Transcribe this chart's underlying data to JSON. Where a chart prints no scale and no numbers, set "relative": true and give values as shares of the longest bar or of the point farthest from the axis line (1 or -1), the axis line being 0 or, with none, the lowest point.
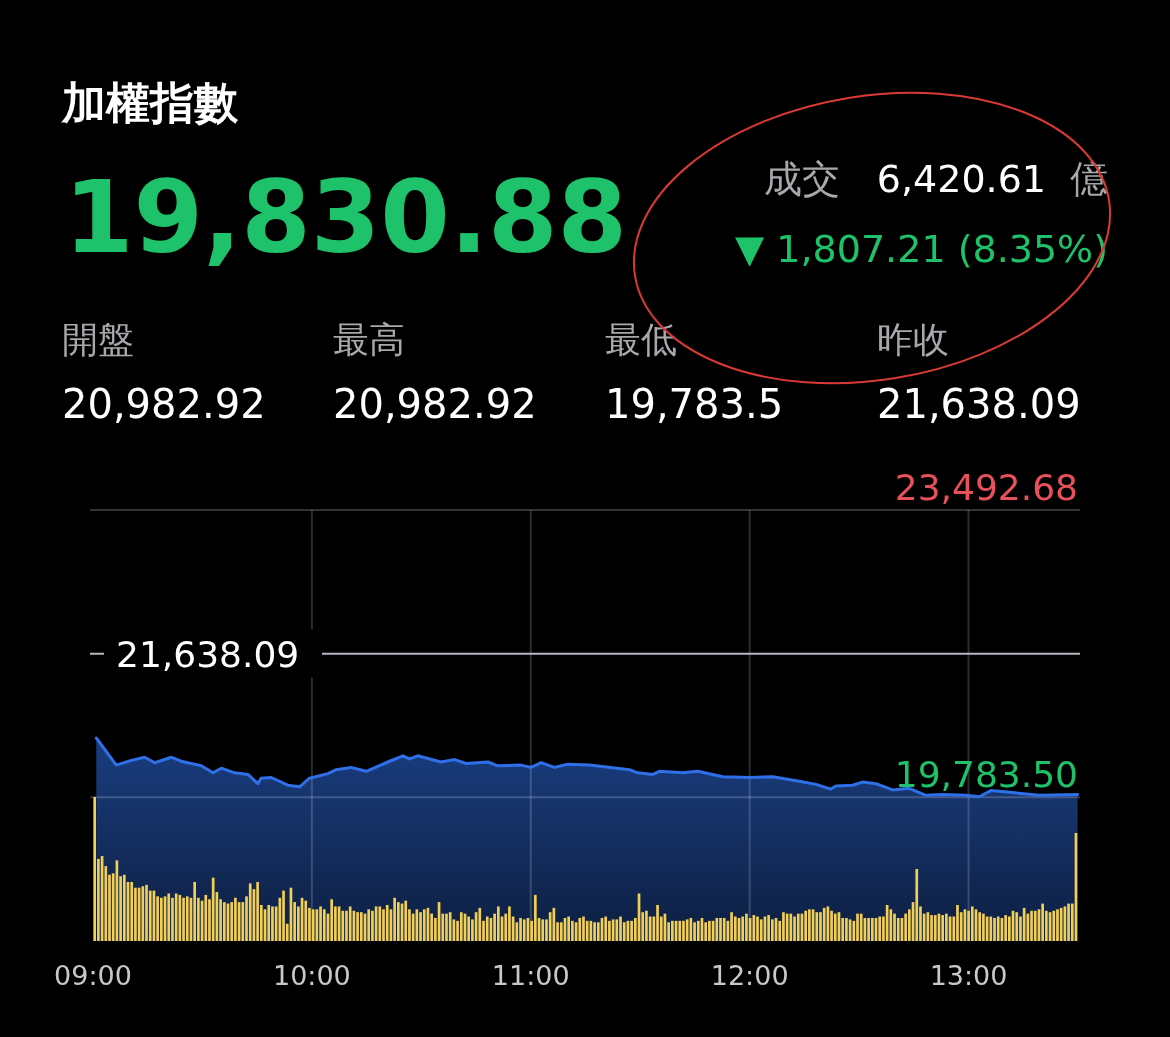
{
  "chart_data": [
    {
      "type": "other",
      "title": "加權指數",
      "annotations": [
        "19,830.88",
        "成交",
        "6,420.61",
        "億",
        "▼ 1,807.21 (8.35%)",
        "開盤",
        "20,982.92",
        "最高",
        "20,982.92",
        "最低",
        "19,783.5",
        "昨收",
        "21,638.09"
      ]
    },
    {
      "type": "area",
      "xlim": [
        9,
        13.5
      ],
      "ylim": [
        17928.91,
        23492.68
      ],
      "grid": true,
      "xticks": [
        {
          "value": 9,
          "label": "09:00"
        },
        {
          "value": 10,
          "label": "10:00"
        },
        {
          "value": 11,
          "label": "11:00"
        },
        {
          "value": 12,
          "label": "12:00"
        },
        {
          "value": 13,
          "label": "13:00"
        }
      ],
      "yticks": [
        {
          "value": 23492.68,
          "label": "23,492.68"
        },
        {
          "value": 19783.5,
          "label": "19,783.50"
        }
      ],
      "ref_lines": [
        {
          "axis": "y",
          "value": 21638.09,
          "label": "21,638.09",
          "color": "#b4b8c4"
        }
      ],
      "x": [
        9.015,
        9.106,
        9.175,
        9.236,
        9.282,
        9.358,
        9.403,
        9.495,
        9.548,
        9.586,
        9.647,
        9.708,
        9.753,
        9.768,
        9.814,
        9.89,
        9.944,
        9.989,
        10.073,
        10.111,
        10.179,
        10.248,
        10.347,
        10.416,
        10.446,
        10.484,
        10.59,
        10.652,
        10.705,
        10.804,
        10.849,
        10.956,
        11.001,
        11.047,
        11.108,
        11.169,
        11.268,
        11.451,
        11.489,
        11.557,
        11.588,
        11.694,
        11.763,
        11.877,
        11.999,
        12.105,
        12.227,
        12.303,
        12.371,
        12.394,
        12.47,
        12.516,
        12.577,
        12.653,
        12.729,
        12.805,
        12.881,
        12.988,
        13.049,
        13.102,
        13.186,
        13.323,
        13.498
      ],
      "series": [
        {
          "color": "#2f6fe8",
          "values": [
            20550,
            20200,
            20260,
            20300,
            20230,
            20300,
            20250,
            20190,
            20100,
            20160,
            20100,
            20080,
            19960,
            20030,
            20040,
            19940,
            19920,
            20030,
            20090,
            20140,
            20170,
            20120,
            20240,
            20320,
            20280,
            20320,
            20240,
            20270,
            20220,
            20240,
            20190,
            20200,
            20170,
            20230,
            20170,
            20210,
            20200,
            20140,
            20100,
            20080,
            20120,
            20100,
            20120,
            20050,
            20040,
            20050,
            19990,
            19950,
            19890,
            19930,
            19940,
            19980,
            19960,
            19880,
            19900,
            19810,
            19820,
            19810,
            19790,
            19870,
            19850,
            19810,
            19820
          ]
        }
      ]
    },
    {
      "type": "bar",
      "relative": true,
      "color": "#f2cf55",
      "categories": [
        null,
        null,
        null,
        null,
        null,
        null,
        null,
        null,
        null,
        null,
        null,
        null,
        null,
        null,
        null,
        null,
        null,
        null,
        null,
        null,
        null,
        null,
        null,
        null,
        null,
        null,
        null,
        null,
        null,
        null,
        null,
        null,
        null,
        null,
        null,
        null,
        null,
        null,
        null,
        null,
        null,
        null,
        null,
        null,
        null,
        null,
        null,
        null,
        null,
        null,
        null,
        null,
        null,
        null,
        null,
        null,
        null,
        null,
        null,
        null,
        null,
        null,
        null,
        null,
        null,
        null,
        null,
        null,
        null,
        null,
        null,
        null,
        null,
        null,
        null,
        null,
        null,
        null,
        null,
        null,
        null,
        null,
        null,
        null,
        null,
        null,
        null,
        null,
        null,
        null,
        null,
        null,
        null,
        null,
        null,
        null,
        null,
        null,
        null,
        null,
        null,
        null,
        null,
        null,
        null,
        null,
        null,
        null,
        null,
        null,
        null,
        null,
        null,
        null,
        null,
        null,
        null,
        null,
        null,
        null,
        null,
        null,
        null,
        null,
        null,
        null,
        null,
        null,
        null,
        null,
        null,
        null,
        null,
        null,
        null,
        null,
        null,
        null,
        null,
        null,
        null,
        null,
        null,
        null,
        null,
        null,
        null,
        null,
        null,
        null,
        null,
        null,
        null,
        null,
        null,
        null,
        null,
        null,
        null,
        null,
        null,
        null,
        null,
        null,
        null,
        null,
        null,
        null,
        null,
        null,
        null,
        null,
        null,
        null,
        null,
        null,
        null,
        null,
        null,
        null,
        null,
        null,
        null,
        null,
        null,
        null,
        null,
        null,
        null,
        null,
        null,
        null,
        null,
        null,
        null,
        null,
        null,
        null,
        null,
        null,
        null,
        null,
        null,
        null,
        null,
        null,
        null,
        null,
        null,
        null,
        null,
        null,
        null,
        null,
        null,
        null,
        null,
        null,
        null,
        null,
        null,
        null,
        null,
        null,
        null,
        null,
        null,
        null,
        null,
        null,
        null,
        null,
        null,
        null,
        null,
        null,
        null,
        null,
        null,
        null,
        null,
        null,
        null,
        null,
        null,
        null,
        null,
        null,
        null,
        null,
        null,
        null,
        null,
        null,
        null,
        null,
        null,
        null,
        null,
        null,
        null,
        null,
        null,
        null,
        null,
        null
      ],
      "values": [
        1.0,
        0.57,
        0.59,
        0.52,
        0.46,
        0.47,
        0.56,
        0.45,
        0.46,
        0.41,
        0.41,
        0.37,
        0.37,
        0.38,
        0.39,
        0.35,
        0.35,
        0.31,
        0.3,
        0.31,
        0.33,
        0.3,
        0.33,
        0.32,
        0.3,
        0.31,
        0.3,
        0.41,
        0.3,
        0.28,
        0.32,
        0.29,
        0.44,
        0.34,
        0.29,
        0.27,
        0.26,
        0.27,
        0.3,
        0.27,
        0.27,
        0.31,
        0.4,
        0.36,
        0.41,
        0.25,
        0.22,
        0.25,
        0.24,
        0.24,
        0.3,
        0.35,
        0.12,
        0.37,
        0.27,
        0.24,
        0.3,
        0.28,
        0.23,
        0.22,
        0.22,
        0.24,
        0.22,
        0.19,
        0.29,
        0.24,
        0.24,
        0.21,
        0.21,
        0.24,
        0.21,
        0.2,
        0.2,
        0.19,
        0.22,
        0.21,
        0.24,
        0.24,
        0.22,
        0.25,
        0.22,
        0.3,
        0.27,
        0.26,
        0.28,
        0.22,
        0.19,
        0.22,
        0.2,
        0.22,
        0.23,
        0.19,
        0.16,
        0.27,
        0.19,
        0.19,
        0.2,
        0.15,
        0.14,
        0.2,
        0.19,
        0.17,
        0.15,
        0.2,
        0.23,
        0.14,
        0.17,
        0.16,
        0.19,
        0.24,
        0.17,
        0.19,
        0.24,
        0.17,
        0.13,
        0.16,
        0.15,
        0.16,
        0.14,
        0.32,
        0.16,
        0.15,
        0.15,
        0.2,
        0.23,
        0.13,
        0.13,
        0.16,
        0.17,
        0.14,
        0.13,
        0.16,
        0.17,
        0.14,
        0.14,
        0.13,
        0.13,
        0.16,
        0.17,
        0.14,
        0.15,
        0.15,
        0.17,
        0.13,
        0.14,
        0.14,
        0.16,
        0.33,
        0.2,
        0.21,
        0.17,
        0.17,
        0.25,
        0.17,
        0.19,
        0.13,
        0.14,
        0.14,
        0.14,
        0.14,
        0.15,
        0.16,
        0.13,
        0.14,
        0.16,
        0.13,
        0.14,
        0.14,
        0.16,
        0.16,
        0.16,
        0.14,
        0.2,
        0.17,
        0.16,
        0.17,
        0.19,
        0.16,
        0.18,
        0.17,
        0.15,
        0.17,
        0.18,
        0.15,
        0.16,
        0.14,
        0.2,
        0.19,
        0.19,
        0.17,
        0.19,
        0.19,
        0.21,
        0.22,
        0.22,
        0.2,
        0.2,
        0.23,
        0.24,
        0.21,
        0.19,
        0.2,
        0.16,
        0.16,
        0.15,
        0.14,
        0.19,
        0.19,
        0.16,
        0.16,
        0.16,
        0.16,
        0.17,
        0.17,
        0.25,
        0.22,
        0.19,
        0.16,
        0.16,
        0.19,
        0.22,
        0.27,
        0.5,
        0.24,
        0.19,
        0.2,
        0.18,
        0.18,
        0.19,
        0.18,
        0.19,
        0.17,
        0.17,
        0.25,
        0.2,
        0.22,
        0.21,
        0.24,
        0.22,
        0.2,
        0.19,
        0.17,
        0.17,
        0.16,
        0.17,
        0.16,
        0.18,
        0.17,
        0.21,
        0.2,
        0.17,
        0.23,
        0.19,
        0.21,
        0.21,
        0.22,
        0.26,
        0.21,
        0.2,
        0.21,
        0.22,
        0.23,
        0.24,
        0.26,
        0.26,
        0.75
      ]
    }
  ]
}
